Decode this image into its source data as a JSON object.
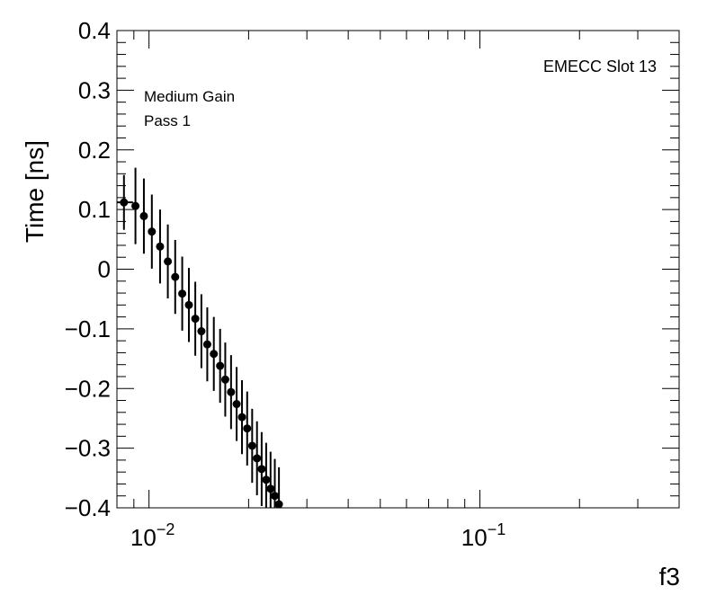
{
  "chart_data": {
    "type": "scatter",
    "xlabel": "f3",
    "ylabel": "Time [ns]",
    "x_scale": "log",
    "xlim": [
      0.008,
      0.4
    ],
    "ylim": [
      -0.4,
      0.4
    ],
    "y_ticks": [
      "0.4",
      "0.3",
      "0.2",
      "0.1",
      "0",
      "−0.1",
      "−0.2",
      "−0.3",
      "−0.4"
    ],
    "x_ticks": [
      {
        "value": 0.01,
        "base": "10",
        "exp": "−2"
      },
      {
        "value": 0.1,
        "base": "10",
        "exp": "−1"
      }
    ],
    "annotations": {
      "gain": "Medium Gain",
      "pass": "Pass 1",
      "slot": "EMECC Slot 13"
    },
    "marker_color": "#000000",
    "series": [
      {
        "points": [
          {
            "x": 0.0084,
            "y": 0.112,
            "err": 0.046
          },
          {
            "x": 0.0091,
            "y": 0.106,
            "err": 0.064
          },
          {
            "x": 0.00965,
            "y": 0.089,
            "err": 0.063
          },
          {
            "x": 0.0102,
            "y": 0.063,
            "err": 0.062
          },
          {
            "x": 0.0108,
            "y": 0.038,
            "err": 0.062
          },
          {
            "x": 0.0114,
            "y": 0.013,
            "err": 0.062
          },
          {
            "x": 0.012,
            "y": -0.013,
            "err": 0.062
          },
          {
            "x": 0.0126,
            "y": -0.041,
            "err": 0.062
          },
          {
            "x": 0.0132,
            "y": -0.06,
            "err": 0.062
          },
          {
            "x": 0.0138,
            "y": -0.083,
            "err": 0.062
          },
          {
            "x": 0.0144,
            "y": -0.104,
            "err": 0.062
          },
          {
            "x": 0.015,
            "y": -0.126,
            "err": 0.062
          },
          {
            "x": 0.0157,
            "y": -0.142,
            "err": 0.062
          },
          {
            "x": 0.0164,
            "y": -0.162,
            "err": 0.062
          },
          {
            "x": 0.017,
            "y": -0.185,
            "err": 0.062
          },
          {
            "x": 0.0177,
            "y": -0.206,
            "err": 0.062
          },
          {
            "x": 0.0184,
            "y": -0.226,
            "err": 0.062
          },
          {
            "x": 0.0191,
            "y": -0.248,
            "err": 0.062
          },
          {
            "x": 0.0198,
            "y": -0.267,
            "err": 0.062
          },
          {
            "x": 0.0205,
            "y": -0.296,
            "err": 0.062
          },
          {
            "x": 0.0212,
            "y": -0.317,
            "err": 0.062
          },
          {
            "x": 0.0219,
            "y": -0.335,
            "err": 0.062
          },
          {
            "x": 0.0226,
            "y": -0.353,
            "err": 0.062
          },
          {
            "x": 0.0233,
            "y": -0.368,
            "err": 0.062
          },
          {
            "x": 0.024,
            "y": -0.38,
            "err": 0.062
          },
          {
            "x": 0.0247,
            "y": -0.394,
            "err": 0.062
          }
        ]
      }
    ]
  }
}
